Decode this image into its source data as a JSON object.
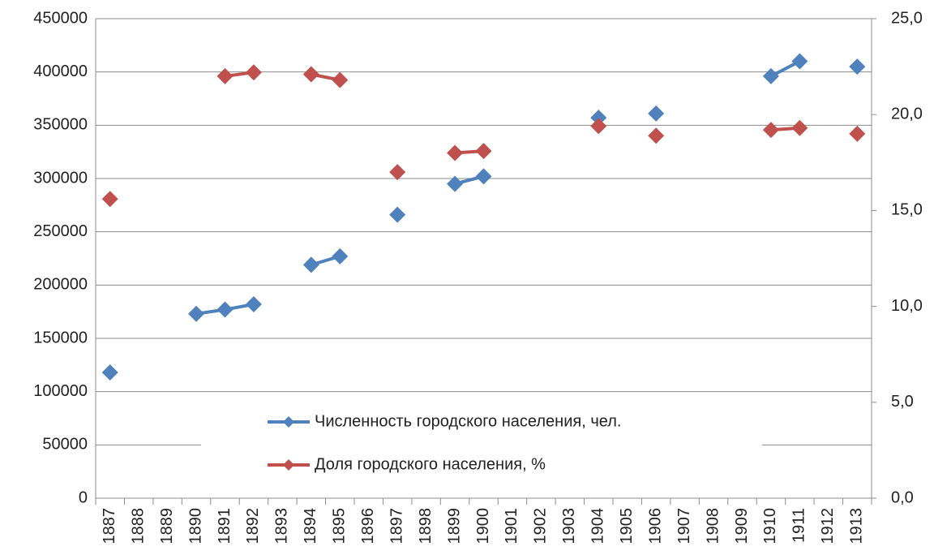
{
  "chart_data": {
    "type": "line",
    "categories": [
      "1887",
      "1888",
      "1889",
      "1890",
      "1891",
      "1892",
      "1893",
      "1894",
      "1895",
      "1896",
      "1897",
      "1898",
      "1899",
      "1900",
      "1901",
      "1902",
      "1903",
      "1904",
      "1905",
      "1906",
      "1907",
      "1908",
      "1909",
      "1910",
      "1911",
      "1912",
      "1913"
    ],
    "series": [
      {
        "name": "Численность городского населения, чел.",
        "color": "#4f81bd",
        "values": [
          118000,
          null,
          null,
          173000,
          177000,
          182000,
          null,
          219000,
          227000,
          null,
          266000,
          null,
          295000,
          302000,
          null,
          null,
          null,
          357000,
          null,
          361000,
          null,
          null,
          null,
          396000,
          410000,
          null,
          405000
        ]
      },
      {
        "name": "Доля городского населения, %",
        "color": "#c0504d",
        "axis": "y2",
        "values": [
          15.6,
          null,
          null,
          null,
          22.0,
          22.2,
          null,
          22.1,
          21.8,
          null,
          17.0,
          null,
          18.0,
          18.1,
          null,
          null,
          null,
          19.4,
          null,
          18.9,
          null,
          null,
          null,
          19.2,
          19.3,
          null,
          19.0
        ]
      }
    ],
    "ylim": [
      0,
      450000
    ],
    "yticks": [
      0,
      50000,
      100000,
      150000,
      200000,
      250000,
      300000,
      350000,
      400000,
      450000
    ],
    "y2lim": [
      0,
      25
    ],
    "y2ticks": [
      {
        "value": 0,
        "label": "0,0"
      },
      {
        "value": 5,
        "label": "5,0"
      },
      {
        "value": 10,
        "label": "10,0"
      },
      {
        "value": 15,
        "label": "15,0"
      },
      {
        "value": 20,
        "label": "20,0"
      },
      {
        "value": 25,
        "label": "25,0"
      }
    ],
    "grid": true,
    "legend": "center"
  }
}
